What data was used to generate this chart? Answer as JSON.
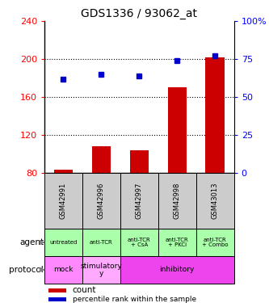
{
  "title": "GDS1336 / 93062_at",
  "samples": [
    "GSM42991",
    "GSM42996",
    "GSM42997",
    "GSM42998",
    "GSM43013"
  ],
  "count_values": [
    83,
    108,
    104,
    170,
    202
  ],
  "percentile_values": [
    62,
    65,
    64,
    74,
    77
  ],
  "left_ylim": [
    80,
    240
  ],
  "left_yticks": [
    80,
    120,
    160,
    200,
    240
  ],
  "right_ylim": [
    0,
    100
  ],
  "right_yticks": [
    0,
    25,
    50,
    75,
    100
  ],
  "right_yticklabels": [
    "0",
    "25",
    "50",
    "75",
    "100%"
  ],
  "bar_color": "#cc0000",
  "dot_color": "#0000cc",
  "agent_labels": [
    "untreated",
    "anti-TCR",
    "anti-TCR\n+ CsA",
    "anti-TCR\n+ PKCi",
    "anti-TCR\n+ Combo"
  ],
  "agent_bg": "#aaffaa",
  "sample_bg": "#cccccc",
  "mock_color": "#ff88ff",
  "stimulatory_color": "#ffaaff",
  "inhibitory_color": "#ee44ee",
  "legend_count_color": "#cc0000",
  "legend_pct_color": "#0000cc"
}
